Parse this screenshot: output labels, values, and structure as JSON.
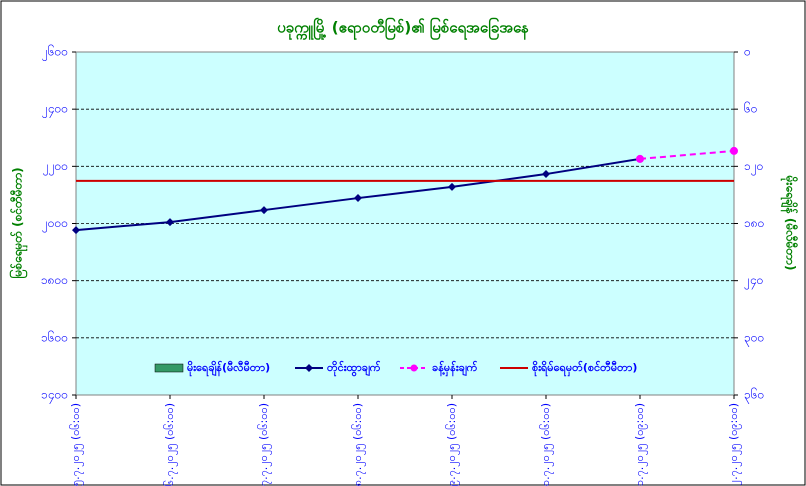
{
  "chart_data": {
    "type": "line",
    "title": "ပခုက္ကူမြို့ (ဧရာဝတီမြစ်)၏ မြစ်ရေအခြေအနေ",
    "ylabel": "မြစ်ရေမှတ် (စင်တီမီတာ)",
    "y2label": "မိုးရေချိန် (မီလီမီတာ)",
    "categories": [
      "၅.၇.၂၀၂၅ (၀၆:၀၀)",
      "၆.၇.၂၀၂၅ (၀၆:၀၀)",
      "၇.၇.၂၀၂၅ (၀၆:၀၀)",
      "၈.၇.၂၀၂၅ (၀၆:၀၀)",
      "၉.၇.၂၀၂၅ (၀၆:၀၀)",
      "၁၀.၇.၂၀၂၅ (၀၆:၀၀)",
      "၁၁.၇.၂၀၂၅ (၀၉:၀၀)",
      "၁၂.၇.၂၀၂၅ (၀၉:၀၀)"
    ],
    "ylim": [
      1400,
      2600
    ],
    "yticks": [
      {
        "value": 1400,
        "label": "၁၄၀၀"
      },
      {
        "value": 1600,
        "label": "၁၆၀၀"
      },
      {
        "value": 1800,
        "label": "၁၈၀၀"
      },
      {
        "value": 2000,
        "label": "၂၀၀၀"
      },
      {
        "value": 2200,
        "label": "၂၂၀၀"
      },
      {
        "value": 2400,
        "label": "၂၄၀၀"
      },
      {
        "value": 2600,
        "label": "၂၆၀၀"
      }
    ],
    "y2lim": [
      360,
      0
    ],
    "y2ticks": [
      {
        "value": 0,
        "label": "၀"
      },
      {
        "value": 60,
        "label": "၆၀"
      },
      {
        "value": 120,
        "label": "၁၂၀"
      },
      {
        "value": 180,
        "label": "၁၈၀"
      },
      {
        "value": 240,
        "label": "၂၄၀"
      },
      {
        "value": 300,
        "label": "၃၀၀"
      },
      {
        "value": 360,
        "label": "၃၆၀"
      }
    ],
    "grid": true,
    "series": [
      {
        "name": "မိုးရေချိန်(မီလီမီတာ)",
        "type": "bar",
        "axis": "y2",
        "color": "#339966",
        "values": [
          null,
          null,
          null,
          null,
          null,
          null,
          null,
          null
        ]
      },
      {
        "name": "တိုင်းထွာချက်",
        "type": "line",
        "color": "#000080",
        "marker": "diamond",
        "values": [
          1977,
          2005,
          2047,
          2089,
          2128,
          2173,
          2226,
          null
        ]
      },
      {
        "name": "ခန့်မှန်းချက်",
        "type": "line",
        "color": "#ff00ff",
        "marker": "circle",
        "dashed": true,
        "values": [
          null,
          null,
          null,
          null,
          null,
          null,
          2226,
          2254
        ]
      },
      {
        "name": "စိုးရိမ်ရေမှတ်(စင်တီမီတာ)",
        "type": "line",
        "color": "#cc0000",
        "values": [
          2149,
          2149,
          2149,
          2149,
          2149,
          2149,
          2149,
          2149
        ]
      }
    ]
  }
}
